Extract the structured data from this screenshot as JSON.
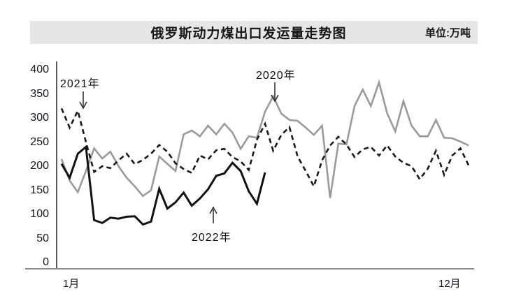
{
  "header": {
    "title": "俄罗斯动力煤出口发运量走势图",
    "unit": "单位:万吨"
  },
  "axes": {
    "y_ticks": [
      "400",
      "350",
      "300",
      "250",
      "200",
      "150",
      "100",
      "50",
      "0"
    ],
    "x_first_label": "1月",
    "x_last_label": "12月"
  },
  "chart_data": {
    "type": "line",
    "title": "俄罗斯动力煤出口发运量走势图",
    "unit_label": "单位:万吨",
    "xlabel_start": "1月",
    "xlabel_end": "12月",
    "x_unit": "week-of-year",
    "ylim": [
      0,
      400
    ],
    "grid": false,
    "legend_position": "inline-annotations",
    "series": [
      {
        "name": "2020年",
        "style": "solid",
        "color": "#9a9a9a",
        "width": 2.6,
        "values": [
          215,
          170,
          146,
          190,
          237,
          216,
          230,
          200,
          176,
          158,
          138,
          150,
          220,
          205,
          190,
          266,
          274,
          262,
          284,
          266,
          288,
          270,
          236,
          262,
          259,
          313,
          345,
          309,
          296,
          294,
          280,
          265,
          284,
          134,
          247,
          245,
          325,
          359,
          325,
          374,
          310,
          272,
          335,
          284,
          262,
          262,
          296,
          259,
          258,
          251,
          243
        ]
      },
      {
        "name": "2021年",
        "style": "dashed",
        "color": "#1a1a1a",
        "width": 2.6,
        "values": [
          320,
          280,
          315,
          250,
          188,
          200,
          196,
          212,
          226,
          204,
          213,
          226,
          244,
          230,
          206,
          194,
          186,
          222,
          214,
          233,
          236,
          219,
          210,
          192,
          255,
          288,
          232,
          265,
          281,
          220,
          190,
          158,
          212,
          243,
          261,
          245,
          219,
          235,
          240,
          222,
          243,
          220,
          207,
          200,
          173,
          195,
          232,
          182,
          222,
          237,
          202
        ]
      },
      {
        "name": "2022年",
        "style": "solid",
        "color": "#111111",
        "width": 3,
        "values": [
          205,
          176,
          226,
          240,
          88,
          82,
          93,
          91,
          95,
          96,
          79,
          85,
          153,
          112,
          125,
          145,
          118,
          133,
          152,
          180,
          185,
          207,
          190,
          148,
          122,
          187
        ]
      }
    ],
    "annotations": [
      {
        "label": "2021年",
        "arrow": "down",
        "target_series": "2021年"
      },
      {
        "label": "2020年",
        "arrow": "down",
        "target_series": "2020年"
      },
      {
        "label": "2022年",
        "arrow": "up",
        "target_series": "2022年"
      }
    ]
  },
  "colors": {
    "titlebar_bg": "#e6e6e6",
    "axis": "#5a5a5a",
    "baseline": "#8a8a8a",
    "text": "#15151f"
  }
}
